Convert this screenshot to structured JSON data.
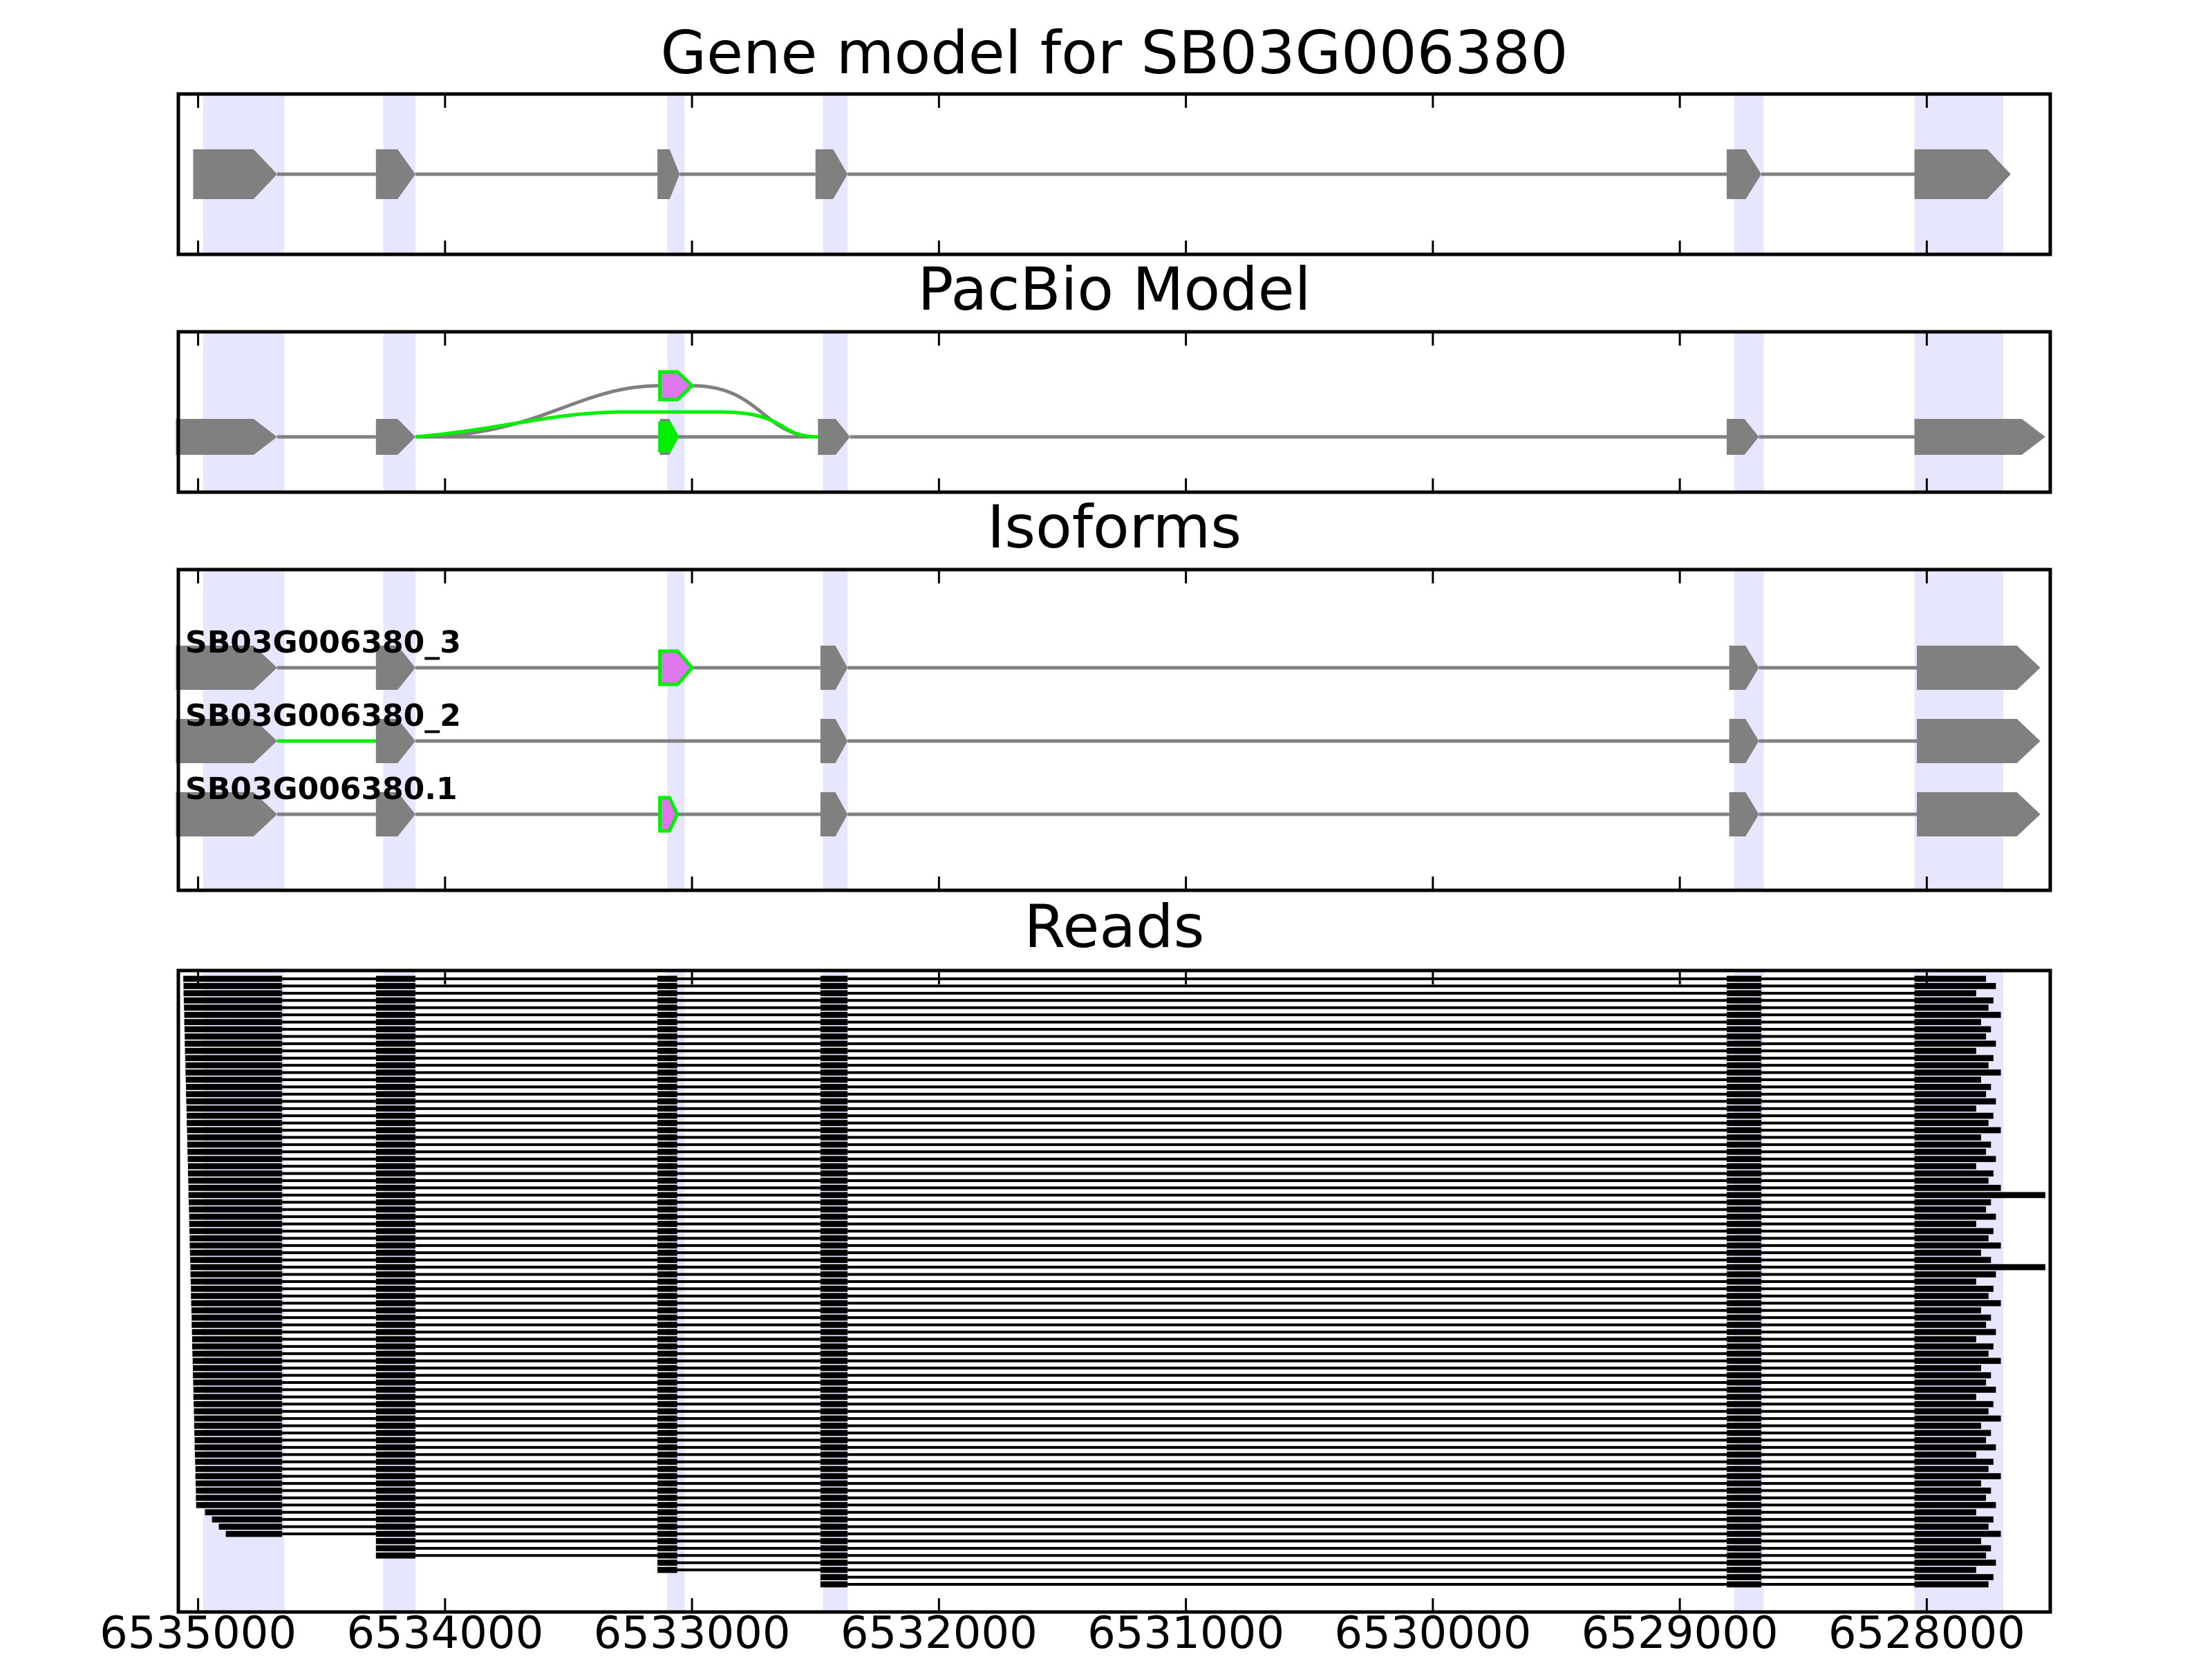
{
  "chart_data": {
    "type": "gene-structure",
    "x_axis": {
      "ticks": [
        6535000,
        6534000,
        6533000,
        6532000,
        6531000,
        6530000,
        6529000,
        6528000
      ],
      "tick_labels": [
        "6535000",
        "6534000",
        "6533000",
        "6532000",
        "6531000",
        "6530000",
        "6529000",
        "6528000"
      ],
      "reversed": true,
      "xlim": [
        6535080,
        6527500
      ]
    },
    "colors": {
      "exon": "#808080",
      "intron": "#808080",
      "highlight": "#e6e6ff",
      "novel": "#00ee00",
      "novel_fill": "#dd77ee",
      "read": "#000000"
    },
    "exon_highlights": [
      [
        6534980,
        6534650
      ],
      [
        6534250,
        6534120
      ],
      [
        6533100,
        6533030
      ],
      [
        6532470,
        6532370
      ],
      [
        6528780,
        6528660
      ],
      [
        6528050,
        6527690
      ]
    ],
    "panels": [
      {
        "id": "gene-model",
        "title": "Gene model for SB03G006380",
        "rows": [
          {
            "exons": [
              [
                6535020,
                6534680
              ],
              [
                6534280,
                6534120
              ],
              [
                6533140,
                6533050
              ],
              [
                6532500,
                6532370
              ],
              [
                6528810,
                6528670
              ],
              [
                6528050,
                6527660
              ]
            ],
            "arrow": "right"
          }
        ]
      },
      {
        "id": "pacbio-model",
        "title": "PacBio Model",
        "rows": [
          {
            "exons": [
              [
                6535090,
                6534680
              ],
              [
                6534280,
                6534120
              ],
              [
                6533130,
                6533060
              ],
              [
                6532490,
                6532360
              ],
              [
                6528810,
                6528680
              ],
              [
                6528050,
                6527520
              ]
            ],
            "arrow": "right"
          }
        ],
        "novel_exons": [
          {
            "range": [
              6533130,
              6533000
            ],
            "level": "upper"
          },
          {
            "range": [
              6533130,
              6533060
            ],
            "level": "lower"
          }
        ],
        "arcs": [
          {
            "from": 6534120,
            "to": 6532490,
            "via": [
              6533130,
              6533000
            ],
            "color": "gray"
          },
          {
            "from": 6534120,
            "to": 6532490,
            "via": [
              6533130,
              6533000
            ],
            "color": "green"
          }
        ]
      },
      {
        "id": "isoforms",
        "title": "Isoforms",
        "rows": [
          {
            "label": "SB03G006380_3",
            "exons": [
              [
                6535090,
                6534680
              ],
              [
                6534280,
                6534120
              ],
              [
                6533130,
                6533000
              ],
              [
                6532480,
                6532370
              ],
              [
                6528800,
                6528680
              ],
              [
                6528040,
                6527540
              ]
            ],
            "novel_index": 2,
            "novel_intron": null
          },
          {
            "label": "SB03G006380_2",
            "exons": [
              [
                6535090,
                6534680
              ],
              [
                6534280,
                6534120
              ],
              [
                6532480,
                6532370
              ],
              [
                6528800,
                6528680
              ],
              [
                6528040,
                6527540
              ]
            ],
            "novel_index": null,
            "novel_intron": 1
          },
          {
            "label": "SB03G006380.1",
            "exons": [
              [
                6535090,
                6534680
              ],
              [
                6534280,
                6534120
              ],
              [
                6533130,
                6533060
              ],
              [
                6532480,
                6532370
              ],
              [
                6528800,
                6528680
              ],
              [
                6528040,
                6527540
              ]
            ],
            "novel_index": 2,
            "novel_intron": null
          }
        ]
      },
      {
        "id": "reads",
        "title": "Reads",
        "read_count": 85,
        "exons": [
          [
            6535080,
            6534660
          ],
          [
            6534280,
            6534120
          ],
          [
            6533140,
            6533060
          ],
          [
            6532480,
            6532370
          ],
          [
            6528810,
            6528670
          ],
          [
            6528050,
            6527720
          ]
        ],
        "read_starts": [
          6535060,
          6535040,
          6535020,
          6535000,
          6534980,
          6534960
        ],
        "read_ends": [
          6527760,
          6527720,
          6527800,
          6527730,
          6527750,
          6527700,
          6527780,
          6527740
        ]
      }
    ]
  }
}
